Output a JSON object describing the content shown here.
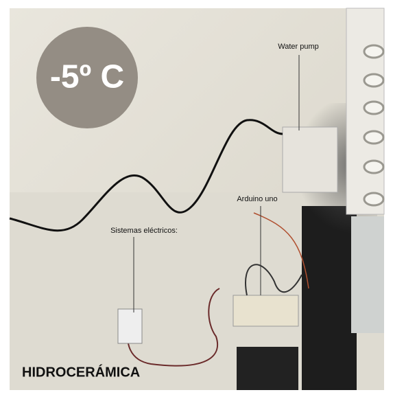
{
  "temperature_badge": "-5º C",
  "labels": {
    "water_pump": "Water pump",
    "arduino": "Arduino uno",
    "electrical": "Sistemas eléctricos:"
  },
  "title": "HIDROCERÁMICA"
}
